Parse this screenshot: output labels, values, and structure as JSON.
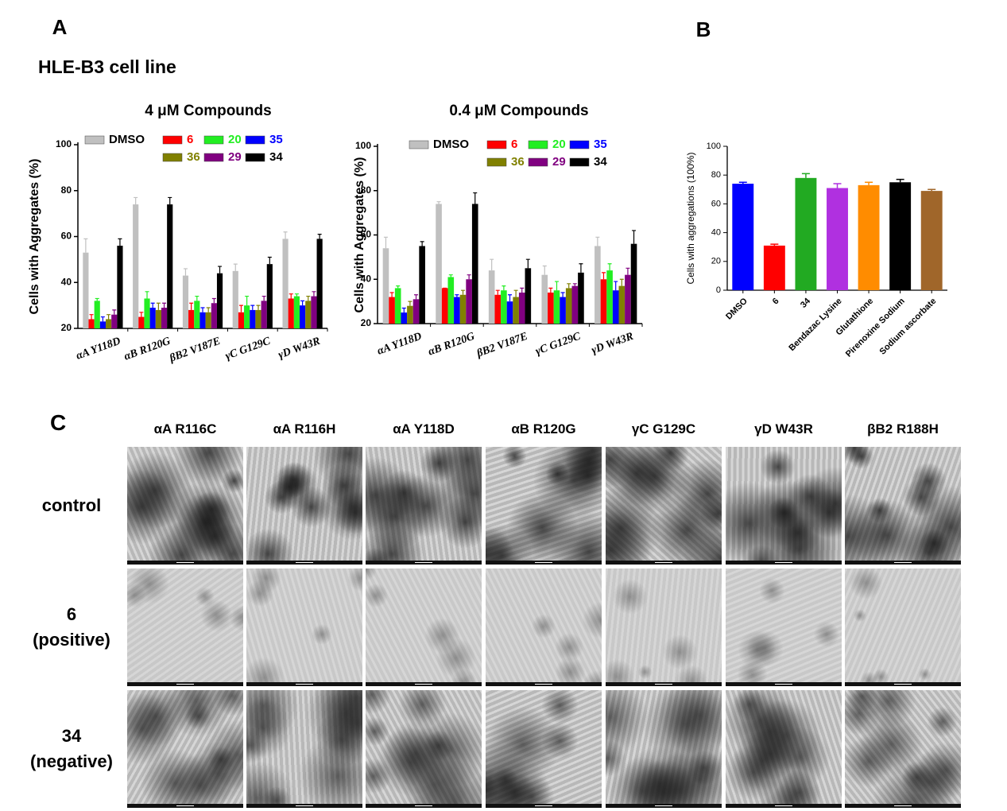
{
  "panel_labels": [
    "A",
    "B",
    "C"
  ],
  "panel_a_subtitle": "HLE-B3 cell line",
  "chart_data": [
    {
      "type": "grouped-bar",
      "title": "4 μM Compounds",
      "ylabel": "Cells with Aggregates (%)",
      "categories": [
        "αA Y118D",
        "αB R120G",
        "βB2 V187E",
        "γC G129C",
        "γD W43R"
      ],
      "series": [
        {
          "name": "DMSO",
          "color": "#c0c0c0",
          "values": [
            53,
            74,
            43,
            45,
            59
          ],
          "errors": [
            6,
            3,
            3,
            3,
            3
          ]
        },
        {
          "name": "6",
          "color": "#ff0000",
          "values": [
            24,
            25,
            28,
            27,
            33
          ],
          "errors": [
            2,
            2,
            3,
            3,
            2
          ]
        },
        {
          "name": "20",
          "color": "#22ee22",
          "values": [
            32,
            33,
            32,
            30,
            34
          ],
          "errors": [
            1,
            3,
            2,
            4,
            1
          ]
        },
        {
          "name": "35",
          "color": "#0000ff",
          "values": [
            23,
            29,
            27,
            28,
            30
          ],
          "errors": [
            2,
            2,
            2,
            2,
            2
          ]
        },
        {
          "name": "36",
          "color": "#808000",
          "values": [
            24,
            28,
            27,
            28,
            32
          ],
          "errors": [
            2,
            3,
            2,
            2,
            2
          ]
        },
        {
          "name": "29",
          "color": "#800080",
          "values": [
            26,
            29,
            31,
            32,
            34
          ],
          "errors": [
            2,
            2,
            2,
            2,
            2
          ]
        },
        {
          "name": "34",
          "color": "#000000",
          "values": [
            56,
            74,
            44,
            48,
            59
          ],
          "errors": [
            3,
            3,
            3,
            3,
            2
          ]
        }
      ],
      "ylim": [
        20,
        100
      ],
      "yticks": [
        20,
        40,
        60,
        80,
        100
      ]
    },
    {
      "type": "grouped-bar",
      "title": "0.4 μM Compounds",
      "ylabel": "Cells with Aggregates (%)",
      "categories": [
        "αA Y118D",
        "αB R120G",
        "βB2 V187E",
        "γC G129C",
        "γD W43R"
      ],
      "series": [
        {
          "name": "DMSO",
          "color": "#c0c0c0",
          "values": [
            54,
            74,
            44,
            42,
            55
          ],
          "errors": [
            5,
            1,
            5,
            4,
            4
          ]
        },
        {
          "name": "6",
          "color": "#ff0000",
          "values": [
            32,
            36,
            33,
            34,
            40
          ],
          "errors": [
            2,
            0,
            2,
            2,
            3
          ]
        },
        {
          "name": "20",
          "color": "#22ee22",
          "values": [
            36,
            41,
            35,
            35,
            44
          ],
          "errors": [
            1,
            1,
            2,
            4,
            3
          ]
        },
        {
          "name": "35",
          "color": "#0000ff",
          "values": [
            25,
            32,
            30,
            32,
            35
          ],
          "errors": [
            2,
            1,
            3,
            2,
            4
          ]
        },
        {
          "name": "36",
          "color": "#808000",
          "values": [
            28,
            33,
            32,
            36,
            37
          ],
          "errors": [
            2,
            2,
            3,
            2,
            3
          ]
        },
        {
          "name": "29",
          "color": "#800080",
          "values": [
            31,
            40,
            34,
            37,
            42
          ],
          "errors": [
            2,
            2,
            2,
            1,
            3
          ]
        },
        {
          "name": "34",
          "color": "#000000",
          "values": [
            55,
            74,
            45,
            43,
            56
          ],
          "errors": [
            2,
            5,
            4,
            4,
            6
          ]
        }
      ],
      "ylim": [
        20,
        100
      ],
      "yticks": [
        20,
        40,
        60,
        80,
        100
      ]
    },
    {
      "type": "bar",
      "ylabel": "Cells with aggregations (100%)",
      "categories": [
        "DMSO",
        "6",
        "34",
        "Bendazac Lysine",
        "Glutathione",
        "Pirenoxine Sodium",
        "Sodium ascorbate"
      ],
      "values": [
        74,
        31,
        78,
        71,
        73,
        75,
        69
      ],
      "errors": [
        1,
        1,
        3,
        3,
        2,
        2,
        1
      ],
      "colors": [
        "#0000ff",
        "#ff0000",
        "#22aa22",
        "#b030e0",
        "#ff8c00",
        "#000000",
        "#a0662a"
      ],
      "ylim": [
        0,
        100
      ],
      "yticks": [
        0,
        20,
        40,
        60,
        80,
        100
      ]
    }
  ],
  "panel_c": {
    "columns": [
      "αA R116C",
      "αA R116H",
      "αA Y118D",
      "αB R120G",
      "γC G129C",
      "γD W43R",
      "βB2 R188H"
    ],
    "rows": [
      [
        "control"
      ],
      [
        "6",
        "(positive)"
      ],
      [
        "34",
        "(negative)"
      ]
    ]
  }
}
